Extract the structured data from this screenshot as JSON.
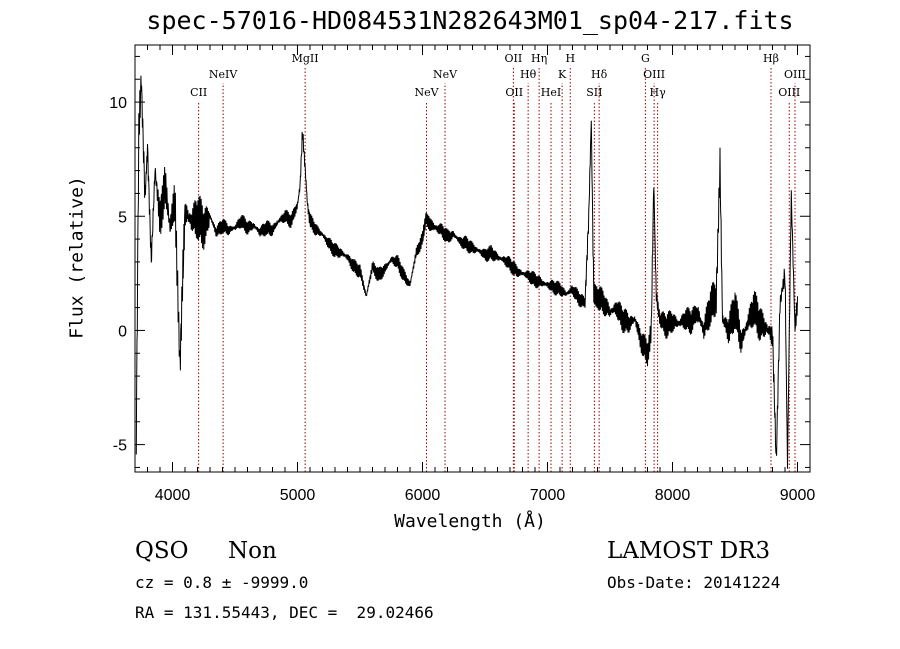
{
  "chart_data": {
    "type": "line",
    "title": "spec-57016-HD084531N282643M01_sp04-217.fits",
    "xlabel": "Wavelength (Å)",
    "ylabel": "Flux (relative)",
    "xlim": [
      3700,
      9100
    ],
    "ylim": [
      -6.2,
      12.5
    ],
    "x_ticks": [
      4000,
      5000,
      6000,
      7000,
      8000,
      9000
    ],
    "y_ticks": [
      -5,
      0,
      5,
      10
    ],
    "grid": false,
    "line_color": "#000000",
    "marker_color": "#990000",
    "series": [
      {
        "x": [
          3710,
          3730,
          3750,
          3780,
          3800,
          3830,
          3860,
          3900,
          3940,
          3980,
          4020,
          4060,
          4080,
          4100,
          4150,
          4200,
          4250,
          4300,
          4350,
          4400,
          4450,
          4500,
          4550,
          4600,
          4650,
          4700,
          4750,
          4800,
          4850,
          4900,
          4950,
          5000,
          5020,
          5040,
          5060,
          5080,
          5100,
          5150,
          5200,
          5250,
          5300,
          5350,
          5400,
          5450,
          5500,
          5550,
          5600,
          5650,
          5700,
          5750,
          5800,
          5850,
          5900,
          5950,
          6000,
          6030,
          6060,
          6100,
          6150,
          6200,
          6250,
          6300,
          6350,
          6400,
          6450,
          6500,
          6550,
          6600,
          6650,
          6700,
          6750,
          6800,
          6850,
          6900,
          6950,
          7000,
          7050,
          7100,
          7150,
          7200,
          7250,
          7300,
          7330,
          7350,
          7370,
          7400,
          7450,
          7500,
          7550,
          7600,
          7650,
          7700,
          7750,
          7800,
          7830,
          7850,
          7870,
          7900,
          7950,
          8000,
          8050,
          8100,
          8150,
          8200,
          8250,
          8300,
          8350,
          8380,
          8400,
          8450,
          8500,
          8550,
          8600,
          8650,
          8700,
          8750,
          8800,
          8830,
          8860,
          8900,
          8920,
          8950,
          8980,
          9000
        ],
        "y": [
          -4.8,
          8.5,
          11.0,
          5.8,
          8.0,
          3.0,
          7.0,
          5.0,
          6.5,
          4.5,
          5.5,
          -1.5,
          2.0,
          5.2,
          4.8,
          5.0,
          4.5,
          5.0,
          4.3,
          4.6,
          4.4,
          4.5,
          4.8,
          4.5,
          4.6,
          4.3,
          4.5,
          4.4,
          4.8,
          5.0,
          4.8,
          5.5,
          6.3,
          8.7,
          7.2,
          5.5,
          4.8,
          4.4,
          4.2,
          3.8,
          3.5,
          3.4,
          3.2,
          2.8,
          2.6,
          1.5,
          2.8,
          2.4,
          2.7,
          3.1,
          3.0,
          2.4,
          2.0,
          3.4,
          4.0,
          5.0,
          4.6,
          4.5,
          4.4,
          4.1,
          4.2,
          3.9,
          3.8,
          3.6,
          3.5,
          3.3,
          3.4,
          3.2,
          3.1,
          2.9,
          2.6,
          2.5,
          2.4,
          2.2,
          2.1,
          2.0,
          1.9,
          1.8,
          1.6,
          1.8,
          1.4,
          1.2,
          5.0,
          9.2,
          1.5,
          1.5,
          1.2,
          0.8,
          1.0,
          0.5,
          0.3,
          0.5,
          -0.5,
          -1.0,
          0.0,
          6.5,
          1.5,
          0.5,
          0.2,
          0.4,
          0.3,
          0.5,
          0.4,
          0.8,
          0.0,
          1.0,
          1.5,
          7.2,
          0.5,
          0.0,
          1.0,
          -0.5,
          0.3,
          1.0,
          0.3,
          0.1,
          -0.2,
          -5.8,
          1.2,
          2.5,
          -5.8,
          6.0,
          0.0,
          1.5
        ]
      }
    ],
    "line_markers": [
      {
        "label": "CII",
        "wavelength": 4209,
        "row": 3
      },
      {
        "label": "NeIV",
        "wavelength": 4405,
        "row": 2
      },
      {
        "label": "MgII",
        "wavelength": 5061,
        "row": 1
      },
      {
        "label": "NeV",
        "wavelength": 6032,
        "row": 3
      },
      {
        "label": "NeV",
        "wavelength": 6180,
        "row": 2
      },
      {
        "label": "OII",
        "wavelength": 6727,
        "row": 1
      },
      {
        "label": "OII",
        "wavelength": 6734,
        "row": 3
      },
      {
        "label": "Hθ",
        "wavelength": 6845,
        "row": 2
      },
      {
        "label": "Hη",
        "wavelength": 6933,
        "row": 1
      },
      {
        "label": "HeI",
        "wavelength": 7028,
        "row": 3
      },
      {
        "label": "K",
        "wavelength": 7117,
        "row": 2
      },
      {
        "label": "H",
        "wavelength": 7182,
        "row": 1
      },
      {
        "label": "SII",
        "wavelength": 7375,
        "row": 3
      },
      {
        "label": "Hδ",
        "wavelength": 7413,
        "row": 2
      },
      {
        "label": "G",
        "wavelength": 7783,
        "row": 1
      },
      {
        "label": "OIII",
        "wavelength": 7853,
        "row": 2
      },
      {
        "label": "Hγ",
        "wavelength": 7881,
        "row": 3
      },
      {
        "label": "Hβ",
        "wavelength": 8788,
        "row": 1
      },
      {
        "label": "OIII",
        "wavelength": 8934,
        "row": 3
      },
      {
        "label": "OIII",
        "wavelength": 8980,
        "row": 2
      }
    ]
  },
  "info": {
    "class": "QSO",
    "subclass": "Non",
    "survey": "LAMOST DR3",
    "cz": "cz = 0.8 ± -9999.0",
    "obs_date": "Obs-Date: 20141224",
    "radec": "RA = 131.55443, DEC =  29.02466"
  }
}
